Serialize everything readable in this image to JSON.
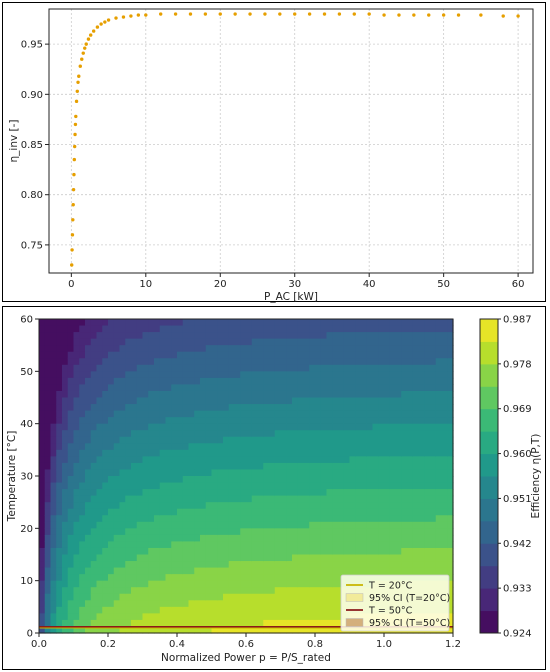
{
  "chart_data": [
    {
      "type": "scatter",
      "title": "",
      "xlabel": "P_AC [kW]",
      "ylabel": "η_inv [-]",
      "xlim": [
        -3,
        62
      ],
      "ylim": [
        0.722,
        0.985
      ],
      "xticks": [
        0,
        10,
        20,
        30,
        40,
        50,
        60
      ],
      "yticks": [
        0.75,
        0.8,
        0.85,
        0.9,
        0.95
      ],
      "grid": true,
      "series": [
        {
          "color": "#E69F00",
          "x": [
            0.05,
            0.1,
            0.15,
            0.2,
            0.25,
            0.3,
            0.35,
            0.4,
            0.45,
            0.5,
            0.55,
            0.6,
            0.7,
            0.8,
            0.9,
            1.0,
            1.2,
            1.4,
            1.6,
            1.8,
            2.0,
            2.3,
            2.6,
            3.0,
            3.5,
            4.0,
            4.5,
            5.0,
            6.0,
            7.0,
            8.0,
            9.0,
            10,
            12,
            14,
            16,
            18,
            20,
            22,
            24,
            26,
            28,
            30,
            32,
            34,
            36,
            38,
            40,
            42,
            44,
            46,
            48,
            50,
            52,
            55,
            58,
            60
          ],
          "y": [
            0.73,
            0.745,
            0.76,
            0.775,
            0.79,
            0.805,
            0.82,
            0.835,
            0.848,
            0.86,
            0.87,
            0.878,
            0.893,
            0.903,
            0.912,
            0.918,
            0.928,
            0.935,
            0.941,
            0.946,
            0.95,
            0.955,
            0.959,
            0.963,
            0.967,
            0.97,
            0.972,
            0.974,
            0.976,
            0.977,
            0.978,
            0.979,
            0.979,
            0.98,
            0.98,
            0.98,
            0.98,
            0.98,
            0.98,
            0.98,
            0.98,
            0.98,
            0.98,
            0.98,
            0.98,
            0.98,
            0.98,
            0.98,
            0.979,
            0.979,
            0.979,
            0.979,
            0.979,
            0.979,
            0.979,
            0.978,
            0.978
          ]
        }
      ]
    },
    {
      "type": "heatmap",
      "title": "",
      "xlabel": "Normalized Power p = P/S_rated",
      "ylabel": "Temperature [°C]",
      "xlim": [
        0,
        1.2
      ],
      "ylim": [
        0,
        60
      ],
      "xticks": [
        0.0,
        0.2,
        0.4,
        0.6,
        0.8,
        1.0,
        1.2
      ],
      "yticks": [
        0,
        10,
        20,
        30,
        40,
        50,
        60
      ],
      "colorbar": {
        "label": "Efficiency η(P,T)",
        "ticks": [
          0.987,
          0.978,
          0.969,
          0.96,
          0.951,
          0.942,
          0.933,
          0.924
        ],
        "range": [
          0.924,
          0.987
        ]
      },
      "lines": [
        {
          "label": "T = 20°C",
          "color": "#c8b400",
          "T": 1.0
        },
        {
          "label": "95% CI (T=20°C)",
          "color": "#f2eb9a"
        },
        {
          "label": "T = 50°C",
          "color": "#8b1a1a",
          "T": 1.2
        },
        {
          "label": "95% CI (T=50°C)",
          "color": "#d4b07c"
        }
      ],
      "legend_position": "lower-right",
      "grid": false
    }
  ]
}
